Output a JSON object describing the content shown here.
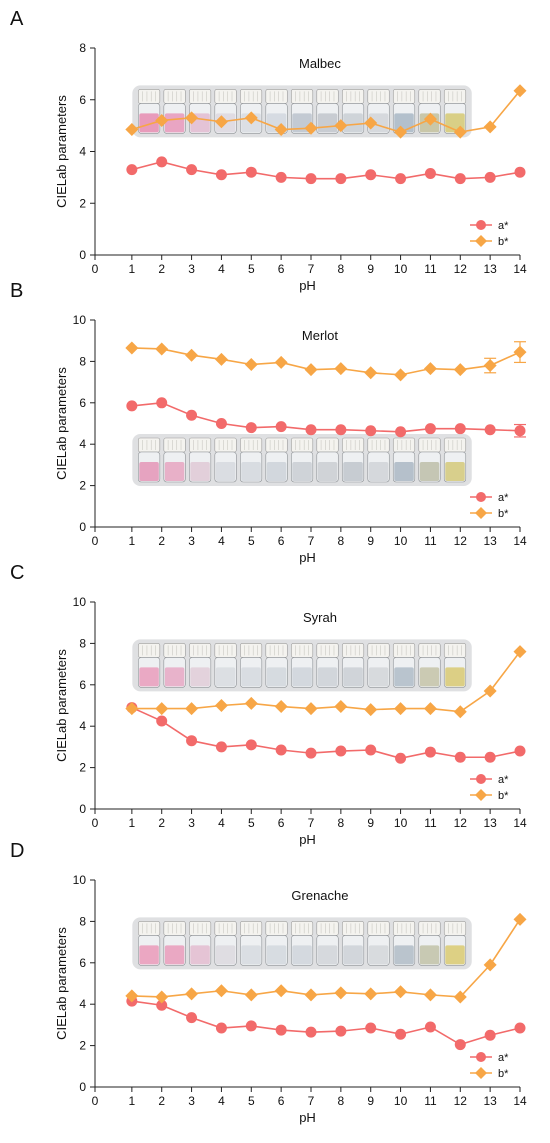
{
  "colors": {
    "a_star": "#f26a6a",
    "b_star": "#f7a646",
    "axis": "#222222"
  },
  "chart_data": [
    {
      "panel_label": "A",
      "type": "line",
      "title": "Malbec",
      "xlabel": "pH",
      "ylabel": "CIELab parameters",
      "xlim": [
        0,
        14
      ],
      "ylim": [
        0,
        8
      ],
      "x_ticks": [
        0,
        1,
        2,
        3,
        4,
        5,
        6,
        7,
        8,
        9,
        10,
        11,
        12,
        13,
        14
      ],
      "y_ticks": [
        0,
        2,
        4,
        6,
        8
      ],
      "x": [
        1,
        2,
        3,
        4,
        5,
        6,
        7,
        8,
        9,
        10,
        11,
        12,
        13,
        14
      ],
      "series": [
        {
          "name": "a*",
          "marker": "circle",
          "values": [
            3.3,
            3.6,
            3.3,
            3.1,
            3.2,
            3.0,
            2.95,
            2.95,
            3.1,
            2.95,
            3.15,
            2.95,
            3.0,
            3.2
          ]
        },
        {
          "name": "b*",
          "marker": "diamond",
          "values": [
            4.85,
            5.2,
            5.3,
            5.15,
            5.3,
            4.85,
            4.9,
            5.0,
            5.1,
            4.75,
            5.25,
            4.75,
            4.95,
            6.35
          ]
        }
      ],
      "legend": "bottom-right",
      "inset_vials": {
        "position": "upper",
        "tints": [
          "#e89bbb",
          "#e9a5c3",
          "#e4c3d6",
          "#e0dce3",
          "#dcdfe4",
          "#d6dbe2",
          "#c3cad3",
          "#c8ccd2",
          "#cfd4d9",
          "#d6d9dd",
          "#b3c0cc",
          "#c9c7a9",
          "#d9cf86"
        ]
      }
    },
    {
      "panel_label": "B",
      "type": "line",
      "title": "Merlot",
      "xlabel": "pH",
      "ylabel": "CIELab parameters",
      "xlim": [
        0,
        14
      ],
      "ylim": [
        0,
        10
      ],
      "x_ticks": [
        0,
        1,
        2,
        3,
        4,
        5,
        6,
        7,
        8,
        9,
        10,
        11,
        12,
        13,
        14
      ],
      "y_ticks": [
        0,
        2,
        4,
        6,
        8,
        10
      ],
      "x": [
        1,
        2,
        3,
        4,
        5,
        6,
        7,
        8,
        9,
        10,
        11,
        12,
        13,
        14
      ],
      "series": [
        {
          "name": "a*",
          "marker": "circle",
          "values": [
            5.85,
            6.0,
            5.4,
            5.0,
            4.8,
            4.85,
            4.7,
            4.7,
            4.65,
            4.6,
            4.75,
            4.75,
            4.7,
            4.65
          ],
          "error": [
            0,
            0,
            0,
            0,
            0,
            0,
            0,
            0,
            0,
            0,
            0,
            0,
            0,
            0.3
          ]
        },
        {
          "name": "b*",
          "marker": "diamond",
          "values": [
            8.65,
            8.6,
            8.3,
            8.1,
            7.85,
            7.95,
            7.6,
            7.65,
            7.45,
            7.35,
            7.65,
            7.6,
            7.8,
            8.45
          ],
          "error": [
            0,
            0,
            0,
            0,
            0,
            0,
            0,
            0,
            0,
            0,
            0,
            0,
            0.35,
            0.5
          ]
        }
      ],
      "legend": "bottom-right",
      "inset_vials": {
        "position": "lower",
        "tints": [
          "#e6a3c0",
          "#e8b0c8",
          "#e2cfda",
          "#dadde2",
          "#d8dce1",
          "#d2d7dd",
          "#cfd3d8",
          "#d0d3d7",
          "#c7ccd2",
          "#d5d8dc",
          "#b5c0cb",
          "#c5c6b4",
          "#d8cf8c"
        ]
      }
    },
    {
      "panel_label": "C",
      "type": "line",
      "title": "Syrah",
      "xlabel": "pH",
      "ylabel": "CIELab parameters",
      "xlim": [
        0,
        14
      ],
      "ylim": [
        0,
        10
      ],
      "x_ticks": [
        0,
        1,
        2,
        3,
        4,
        5,
        6,
        7,
        8,
        9,
        10,
        11,
        12,
        13,
        14
      ],
      "y_ticks": [
        0,
        2,
        4,
        6,
        8,
        10
      ],
      "x": [
        1,
        2,
        3,
        4,
        5,
        6,
        7,
        8,
        9,
        10,
        11,
        12,
        13,
        14
      ],
      "series": [
        {
          "name": "a*",
          "marker": "circle",
          "values": [
            4.9,
            4.25,
            3.3,
            3.0,
            3.1,
            2.85,
            2.7,
            2.8,
            2.85,
            2.45,
            2.75,
            2.5,
            2.5,
            2.8
          ]
        },
        {
          "name": "b*",
          "marker": "diamond",
          "values": [
            4.85,
            4.85,
            4.85,
            5.0,
            5.1,
            4.95,
            4.85,
            4.95,
            4.8,
            4.85,
            4.85,
            4.7,
            5.7,
            7.6
          ]
        }
      ],
      "legend": "bottom-right",
      "inset_vials": {
        "position": "upper",
        "tints": [
          "#eaa9c4",
          "#e8b3cb",
          "#e3d2dc",
          "#dcdfe3",
          "#d9dde2",
          "#d6dbe0",
          "#d3d8de",
          "#d2d6db",
          "#d0d4d9",
          "#d7dadd",
          "#b9c4ce",
          "#cbcab3",
          "#dccf85"
        ]
      }
    },
    {
      "panel_label": "D",
      "type": "line",
      "title": "Grenache",
      "xlabel": "pH",
      "ylabel": "CIELab parameters",
      "xlim": [
        0,
        14
      ],
      "ylim": [
        0,
        10
      ],
      "x_ticks": [
        0,
        1,
        2,
        3,
        4,
        5,
        6,
        7,
        8,
        9,
        10,
        11,
        12,
        13,
        14
      ],
      "y_ticks": [
        0,
        2,
        4,
        6,
        8,
        10
      ],
      "x": [
        1,
        2,
        3,
        4,
        5,
        6,
        7,
        8,
        9,
        10,
        11,
        12,
        13,
        14
      ],
      "series": [
        {
          "name": "a*",
          "marker": "circle",
          "values": [
            4.15,
            3.95,
            3.35,
            2.85,
            2.95,
            2.75,
            2.65,
            2.7,
            2.85,
            2.55,
            2.9,
            2.05,
            2.5,
            2.85
          ]
        },
        {
          "name": "b*",
          "marker": "diamond",
          "values": [
            4.4,
            4.35,
            4.5,
            4.65,
            4.45,
            4.65,
            4.45,
            4.55,
            4.5,
            4.6,
            4.45,
            4.35,
            5.9,
            8.1
          ]
        }
      ],
      "legend": "bottom-right",
      "inset_vials": {
        "position": "upper",
        "tints": [
          "#eba7c2",
          "#eaa8c3",
          "#e5c4d5",
          "#dfdde2",
          "#dadee3",
          "#d7dce1",
          "#d4d9df",
          "#d6d9dd",
          "#d2d6db",
          "#d8dbde",
          "#bac4cd",
          "#c8c9b3",
          "#ddd084"
        ]
      }
    }
  ]
}
